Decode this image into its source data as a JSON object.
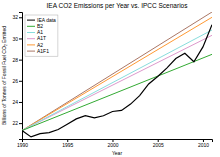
{
  "chart_data": {
    "type": "line",
    "title": "IEA CO2 Emissions per Year vs. IPCC Scenarios",
    "xlabel": "Year",
    "ylabel": "Billions of Tonnes of Fossil Fuel CO₂ Emitted",
    "xlim": [
      1990,
      2011
    ],
    "ylim": [
      20.5,
      32.5
    ],
    "xticks": [
      1990,
      1995,
      2000,
      2005,
      2010
    ],
    "yticks": [
      22,
      24,
      26,
      28,
      30,
      32
    ],
    "grid": false,
    "legend": "upper-left",
    "series": [
      {
        "name": "IEA data",
        "color": "#000000",
        "x": [
          1990,
          1991,
          1992,
          1993,
          1994,
          1995,
          1996,
          1997,
          1998,
          1999,
          2000,
          2001,
          2002,
          2003,
          2004,
          2005,
          2006,
          2007,
          2008,
          2009,
          2010,
          2011
        ],
        "values": [
          21.3,
          20.7,
          21.0,
          21.1,
          21.4,
          21.9,
          22.4,
          22.7,
          22.5,
          22.7,
          23.1,
          23.2,
          23.8,
          24.6,
          25.7,
          26.4,
          27.2,
          28.1,
          28.6,
          27.8,
          29.2,
          31.3
        ]
      },
      {
        "name": "B2",
        "color": "#33aa33",
        "x": [
          1990,
          2011
        ],
        "values": [
          21.3,
          28.5
        ]
      },
      {
        "name": "A1",
        "color": "#88dddd",
        "x": [
          1990,
          2011
        ],
        "values": [
          21.3,
          30.8
        ]
      },
      {
        "name": "A1T",
        "color": "#dd99cc",
        "x": [
          1990,
          2011
        ],
        "values": [
          21.3,
          30.3
        ]
      },
      {
        "name": "A2",
        "color": "#ff9933",
        "x": [
          1990,
          2011
        ],
        "values": [
          21.3,
          32.0
        ]
      },
      {
        "name": "A1F1",
        "color": "#aa7766",
        "x": [
          1990,
          2011
        ],
        "values": [
          21.3,
          32.5
        ]
      }
    ]
  }
}
